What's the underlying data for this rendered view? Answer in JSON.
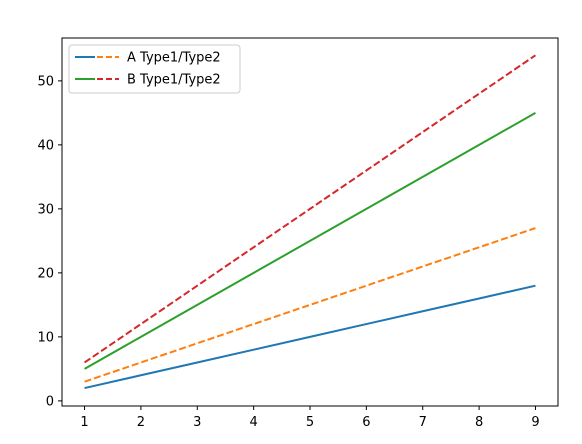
{
  "chart_data": {
    "type": "line",
    "title": "",
    "xlabel": "",
    "ylabel": "",
    "x": [
      1,
      2,
      3,
      4,
      5,
      6,
      7,
      8,
      9
    ],
    "xlim": [
      0.6,
      9.4
    ],
    "ylim": [
      -0.8,
      56.7
    ],
    "xticks": [
      1,
      2,
      3,
      4,
      5,
      6,
      7,
      8,
      9
    ],
    "yticks": [
      0,
      10,
      20,
      30,
      40,
      50
    ],
    "grid": false,
    "legend_position": "top-left",
    "series": [
      {
        "line": "A",
        "style": "solid",
        "color": "#1f77b4",
        "values": [
          2,
          4,
          6,
          8,
          10,
          12,
          14,
          16,
          18
        ]
      },
      {
        "line": "A",
        "style": "dashed",
        "color": "#ff7f0e",
        "values": [
          3,
          6,
          9,
          12,
          15,
          18,
          21,
          24,
          27
        ]
      },
      {
        "line": "B",
        "style": "solid",
        "color": "#2ca02c",
        "values": [
          5,
          10,
          15,
          20,
          25,
          30,
          35,
          40,
          45
        ]
      },
      {
        "line": "B",
        "style": "dashed",
        "color": "#d62728",
        "values": [
          6,
          12,
          18,
          24,
          30,
          36,
          42,
          48,
          54
        ]
      }
    ],
    "legend": [
      {
        "label": "A Type1/Type2",
        "solid_color": "#1f77b4",
        "dashed_color": "#ff7f0e"
      },
      {
        "label": "B Type1/Type2",
        "solid_color": "#2ca02c",
        "dashed_color": "#d62728"
      }
    ]
  }
}
